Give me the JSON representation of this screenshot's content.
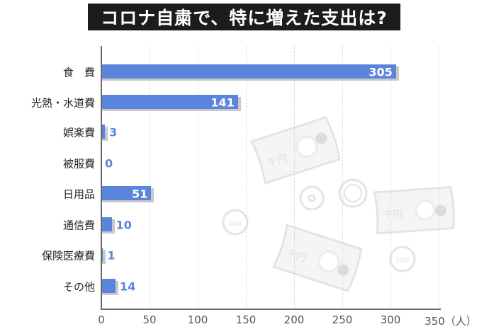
{
  "title": "コロナ自粛で、特に増えた支出は?",
  "colors": {
    "bar": "#5b85dc",
    "bar_shadow": "#c9c9c9",
    "value_label_outside": "#5b85dc",
    "value_label_inside": "#ffffff",
    "title_bg": "#1c1c1c",
    "title_text": "#ffffff",
    "axis": "#6b6b6b",
    "decoration": "#e6e6e6"
  },
  "x_axis": {
    "ticks": [
      "0",
      "50",
      "100",
      "150",
      "200",
      "250",
      "300",
      "350（人）"
    ],
    "unit": "（人）"
  },
  "decorations": [
    "thousand-yen-bill-icon",
    "thousand-yen-bill-icon",
    "thousand-yen-bill-icon",
    "hundred-yen-coin-icon",
    "hundred-yen-coin-icon",
    "ten-yen-coin-icon",
    "five-yen-coin-icon"
  ],
  "chart_data": {
    "type": "bar",
    "orientation": "horizontal",
    "title": "コロナ自粛で、特に増えた支出は?",
    "xlabel": "（人）",
    "ylabel": "",
    "categories": [
      "食　費",
      "光熱・水道費",
      "娯楽費",
      "被服費",
      "日用品",
      "通信費",
      "保険医療費",
      "その他"
    ],
    "values": [
      305,
      141,
      3,
      0,
      51,
      10,
      1,
      14
    ],
    "xlim": [
      0,
      350
    ],
    "x_ticks": [
      0,
      50,
      100,
      150,
      200,
      250,
      300,
      350
    ],
    "grid": "vertical dotted",
    "legend": "none",
    "data_labels": [
      "305",
      "141",
      "3",
      "0",
      "51",
      "10",
      "1",
      "14"
    ]
  }
}
